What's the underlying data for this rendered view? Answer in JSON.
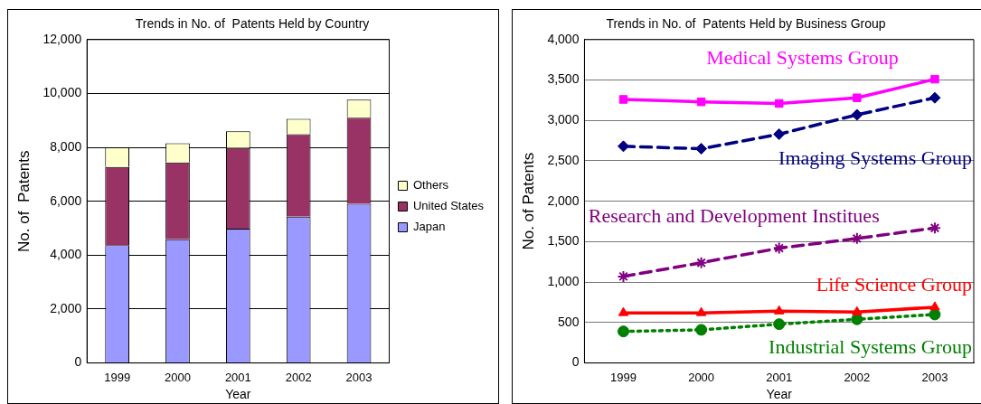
{
  "chart_data": [
    {
      "type": "bar",
      "title": "Trends in No. of  Patents Held by Country",
      "xlabel": "Year",
      "ylabel": "No. of  Patents",
      "categories": [
        "1999",
        "2000",
        "2001",
        "2002",
        "2003"
      ],
      "stacked": true,
      "legend": "right",
      "grid": "y",
      "ylim": [
        0,
        12000
      ],
      "yticks": [
        {
          "value": 0,
          "label": "0"
        },
        {
          "value": 2000,
          "label": "2,000"
        },
        {
          "value": 4000,
          "label": "4,000"
        },
        {
          "value": 6000,
          "label": "6,000"
        },
        {
          "value": 8000,
          "label": "8,000"
        },
        {
          "value": 10000,
          "label": "10,000"
        },
        {
          "value": 12000,
          "label": "12,000"
        }
      ],
      "series": [
        {
          "name": "Japan",
          "color": "#9999ff",
          "values": [
            4370,
            4590,
            4980,
            5430,
            5910
          ]
        },
        {
          "name": "United States",
          "color": "#993366",
          "values": [
            2900,
            2850,
            3000,
            3060,
            3190
          ]
        },
        {
          "name": "Others",
          "color": "#ffffcc",
          "values": [
            730,
            710,
            620,
            570,
            670
          ]
        }
      ]
    },
    {
      "type": "line",
      "title": "Trends in No. of  Patents Held by Business Group",
      "xlabel": "Year",
      "ylabel": "No. of Patents",
      "categories": [
        "1999",
        "2000",
        "2001",
        "2002",
        "2003"
      ],
      "grid": "y",
      "ylim": [
        0,
        4000
      ],
      "yticks": [
        {
          "value": 0,
          "label": "0"
        },
        {
          "value": 500,
          "label": "500"
        },
        {
          "value": 1000,
          "label": "1,000"
        },
        {
          "value": 1500,
          "label": "1,500"
        },
        {
          "value": 2000,
          "label": "2,000"
        },
        {
          "value": 2500,
          "label": "2,500"
        },
        {
          "value": 3000,
          "label": "3,000"
        },
        {
          "value": 3500,
          "label": "3,500"
        },
        {
          "value": 4000,
          "label": "4,000"
        }
      ],
      "series": [
        {
          "name": "Medical Systems Group",
          "color": "#ff00ff",
          "marker": "square",
          "line_style": "solid",
          "values": [
            3260,
            3230,
            3210,
            3280,
            3510
          ]
        },
        {
          "name": "Imaging Systems Group",
          "color": "#000080",
          "marker": "diamond",
          "line_style": "dashed",
          "values": [
            2680,
            2650,
            2830,
            3070,
            3280
          ]
        },
        {
          "name": "Research and Development Institues",
          "color": "#800080",
          "marker": "cross",
          "line_style": "dashed",
          "values": [
            1070,
            1240,
            1420,
            1540,
            1670
          ]
        },
        {
          "name": "Life Science Group",
          "color": "#ff0000",
          "marker": "triangle",
          "line_style": "solid",
          "values": [
            620,
            620,
            640,
            630,
            690
          ]
        },
        {
          "name": "Industrial Systems Group",
          "color": "#008000",
          "marker": "circle",
          "line_style": "dotted",
          "values": [
            390,
            410,
            480,
            540,
            600
          ]
        }
      ]
    }
  ]
}
